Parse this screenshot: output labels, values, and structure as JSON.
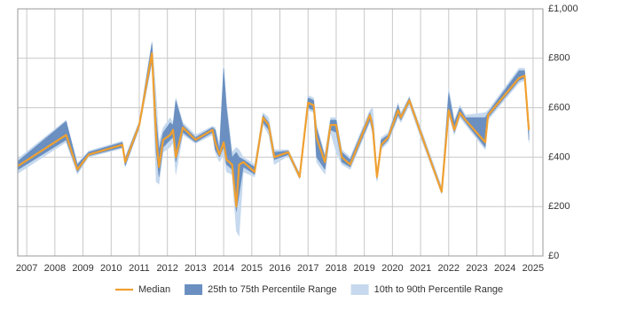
{
  "chart_data": {
    "type": "line",
    "x": [
      2006.7,
      2008.4,
      2008.8,
      2009.2,
      2010.4,
      2010.5,
      2011.0,
      2011.45,
      2011.6,
      2011.7,
      2011.85,
      2012.1,
      2012.2,
      2012.3,
      2012.55,
      2013.0,
      2013.6,
      2013.7,
      2013.85,
      2014.0,
      2014.1,
      2014.3,
      2014.45,
      2014.55,
      2014.7,
      2015.1,
      2015.4,
      2015.6,
      2015.8,
      2016.3,
      2016.7,
      2017.0,
      2017.2,
      2017.3,
      2017.6,
      2017.8,
      2018.0,
      2018.2,
      2018.5,
      2019.2,
      2019.3,
      2019.45,
      2019.6,
      2019.85,
      2020.2,
      2020.3,
      2020.6,
      2021.0,
      2021.75,
      2022.0,
      2022.2,
      2022.4,
      2022.6,
      2023.3,
      2023.4,
      2024.5,
      2024.7,
      2024.85
    ],
    "series": [
      {
        "name": "Median",
        "color": "#f0a030",
        "values": [
          365,
          490,
          350,
          410,
          450,
          380,
          530,
          820,
          480,
          360,
          470,
          490,
          510,
          400,
          520,
          470,
          510,
          460,
          410,
          460,
          390,
          370,
          200,
          370,
          380,
          340,
          560,
          530,
          400,
          420,
          320,
          620,
          610,
          480,
          380,
          530,
          530,
          400,
          370,
          570,
          520,
          320,
          450,
          480,
          590,
          560,
          630,
          500,
          260,
          590,
          510,
          580,
          550,
          460,
          570,
          720,
          730,
          510
        ]
      },
      {
        "name": "25th to 75th Percentile Range",
        "color": "#6a8fc0",
        "low": [
          350,
          470,
          340,
          405,
          440,
          365,
          520,
          790,
          420,
          320,
          440,
          470,
          480,
          380,
          500,
          460,
          500,
          430,
          400,
          440,
          370,
          350,
          180,
          250,
          360,
          330,
          540,
          510,
          390,
          410,
          315,
          600,
          590,
          400,
          350,
          510,
          500,
          380,
          360,
          550,
          500,
          310,
          440,
          470,
          570,
          550,
          620,
          490,
          255,
          580,
          500,
          570,
          540,
          440,
          560,
          710,
          720,
          470
        ],
        "high": [
          385,
          545,
          370,
          420,
          460,
          395,
          540,
          860,
          560,
          430,
          500,
          540,
          530,
          630,
          530,
          480,
          520,
          510,
          430,
          760,
          600,
          400,
          420,
          400,
          390,
          360,
          570,
          540,
          420,
          425,
          330,
          640,
          630,
          520,
          400,
          550,
          550,
          420,
          390,
          580,
          540,
          330,
          470,
          490,
          610,
          570,
          640,
          510,
          270,
          660,
          540,
          600,
          560,
          560,
          580,
          750,
          750,
          520
        ]
      },
      {
        "name": "10th to 90th Percentile Range",
        "color": "#c6d9ee",
        "low": [
          335,
          460,
          330,
          400,
          435,
          360,
          515,
          780,
          300,
          290,
          420,
          440,
          460,
          330,
          490,
          455,
          490,
          420,
          380,
          410,
          340,
          330,
          100,
          80,
          340,
          320,
          530,
          490,
          370,
          405,
          310,
          590,
          580,
          380,
          330,
          500,
          420,
          370,
          350,
          540,
          490,
          300,
          430,
          460,
          560,
          540,
          610,
          480,
          250,
          570,
          490,
          560,
          530,
          430,
          550,
          700,
          710,
          460
        ],
        "high": [
          395,
          550,
          375,
          425,
          465,
          400,
          545,
          870,
          650,
          460,
          520,
          560,
          540,
          640,
          540,
          490,
          525,
          520,
          450,
          770,
          620,
          420,
          440,
          430,
          400,
          370,
          580,
          560,
          430,
          430,
          335,
          650,
          640,
          530,
          410,
          560,
          560,
          430,
          400,
          590,
          600,
          340,
          480,
          500,
          620,
          580,
          645,
          520,
          280,
          680,
          550,
          610,
          570,
          580,
          590,
          760,
          760,
          530
        ]
      }
    ],
    "xlim": [
      2006.68,
      2025.35
    ],
    "xticks": [
      2007,
      2008,
      2009,
      2010,
      2011,
      2012,
      2013,
      2014,
      2015,
      2016,
      2017,
      2018,
      2019,
      2020,
      2021,
      2022,
      2023,
      2024,
      2025
    ],
    "ylim": [
      0,
      1000
    ],
    "yticks": [
      {
        "value": 0,
        "label": "£0"
      },
      {
        "value": 200,
        "label": "£200"
      },
      {
        "value": 400,
        "label": "£400"
      },
      {
        "value": 600,
        "label": "£600"
      },
      {
        "value": 800,
        "label": "£800"
      },
      {
        "value": 1000,
        "label": "£1,000"
      }
    ],
    "grid": true,
    "legend": "bottom"
  }
}
